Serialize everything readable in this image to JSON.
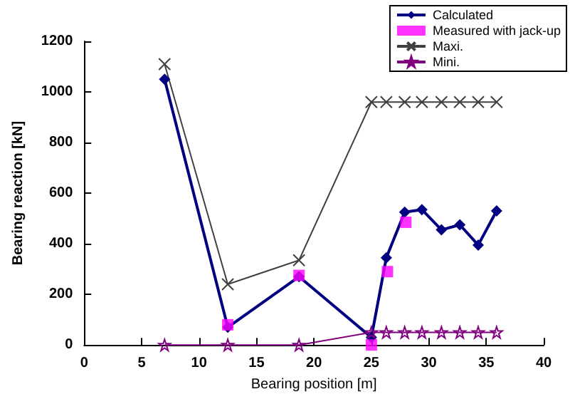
{
  "chart_data": {
    "type": "line",
    "xlabel": "Bearing position [m]",
    "ylabel": "Bearing reaction [kN]",
    "xlim": [
      0,
      40
    ],
    "xticks": [
      0,
      5,
      10,
      15,
      20,
      25,
      30,
      35,
      40
    ],
    "ylim": [
      0,
      1200
    ],
    "yticks": [
      0,
      200,
      400,
      600,
      800,
      1000,
      1200
    ],
    "grid": false,
    "legend": "top right",
    "series": [
      {
        "name": "Calculated",
        "marker": "diamond",
        "color": "#000080",
        "x": [
          7,
          12.5,
          18.7,
          25,
          26.3,
          27.9,
          29.4,
          31.1,
          32.7,
          34.3,
          35.9
        ],
        "values": [
          1050,
          70,
          270,
          30,
          345,
          525,
          535,
          455,
          475,
          395,
          530
        ]
      },
      {
        "name": "Measured with jack-up",
        "type": "scatter",
        "marker": "square",
        "color": "#ff00ff",
        "x": [
          12.5,
          18.7,
          25,
          26.4,
          28
        ],
        "values": [
          80,
          275,
          0,
          290,
          485
        ]
      },
      {
        "name": "Maxi.",
        "marker": "cross",
        "color": "#404040",
        "x": [
          7,
          12.5,
          18.7,
          25,
          26.3,
          27.9,
          29.4,
          31.1,
          32.7,
          34.3,
          35.9
        ],
        "values": [
          1110,
          240,
          335,
          960,
          960,
          960,
          960,
          960,
          960,
          960,
          960
        ]
      },
      {
        "name": "Mini.",
        "marker": "star",
        "color": "#800080",
        "x": [
          7,
          12.5,
          18.7,
          25,
          26.3,
          27.9,
          29.4,
          31.1,
          32.7,
          34.3,
          35.9
        ],
        "values": [
          0,
          0,
          0,
          50,
          50,
          50,
          50,
          50,
          50,
          50,
          50
        ]
      }
    ]
  }
}
